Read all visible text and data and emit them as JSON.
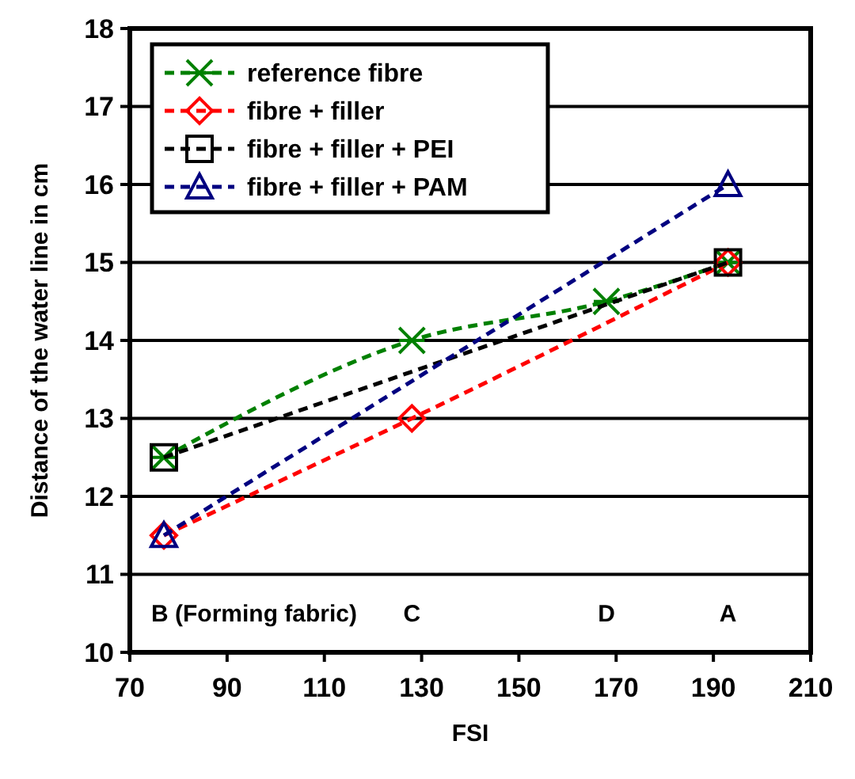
{
  "chart_data": {
    "type": "line",
    "xlabel": "FSI",
    "ylabel": "Distance of the water line in cm",
    "xlim": [
      70,
      210
    ],
    "xticks": [
      70,
      90,
      110,
      130,
      150,
      170,
      190,
      210
    ],
    "ylim": [
      10,
      18
    ],
    "yticks": [
      10,
      11,
      12,
      13,
      14,
      15,
      16,
      17,
      18
    ],
    "grid": "y",
    "legend": "top left",
    "line_style": "dashed",
    "series": [
      {
        "name": "reference fibre",
        "color": "#008000",
        "marker": "cross",
        "x": [
          77,
          128,
          168,
          193
        ],
        "values": [
          12.5,
          14,
          14.5,
          15
        ]
      },
      {
        "name": "fibre + filler",
        "color": "#ff0000",
        "marker": "diamond",
        "x": [
          77,
          128,
          193
        ],
        "values": [
          11.5,
          13,
          15
        ]
      },
      {
        "name": "fibre + filler + PEI",
        "color": "#000000",
        "marker": "square",
        "x": [
          77,
          193
        ],
        "values": [
          12.5,
          15
        ]
      },
      {
        "name": "fibre + filler + PAM",
        "color": "#000080",
        "marker": "triangle",
        "x": [
          77,
          193
        ],
        "values": [
          11.5,
          16
        ]
      }
    ],
    "annotations": [
      "B (Forming fabric)",
      "C",
      "D",
      "A"
    ]
  }
}
